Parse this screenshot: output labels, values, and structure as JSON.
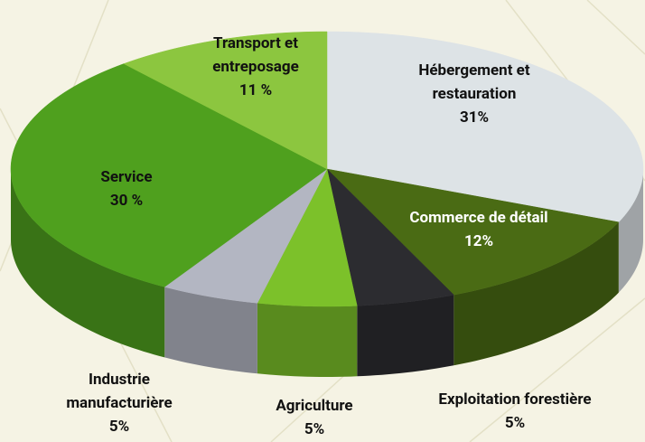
{
  "chart_data": {
    "type": "pie",
    "categories": [
      "Hébergement et restauration",
      "Commerce de détail",
      "Exploitation forestière",
      "Agriculture",
      "Industrie manufacturière",
      "Service",
      "Transport et entreposage"
    ],
    "values": [
      31,
      12,
      5,
      5,
      5,
      30,
      11
    ],
    "value_labels": [
      "31%",
      "12%",
      "5%",
      "5%",
      "5%",
      "30 %",
      "11 %"
    ],
    "colors": [
      "#dde3e6",
      "#4a6b14",
      "#2c2c30",
      "#7cc12a",
      "#b3b6c2",
      "#4fa01e",
      "#8cc63f"
    ]
  }
}
